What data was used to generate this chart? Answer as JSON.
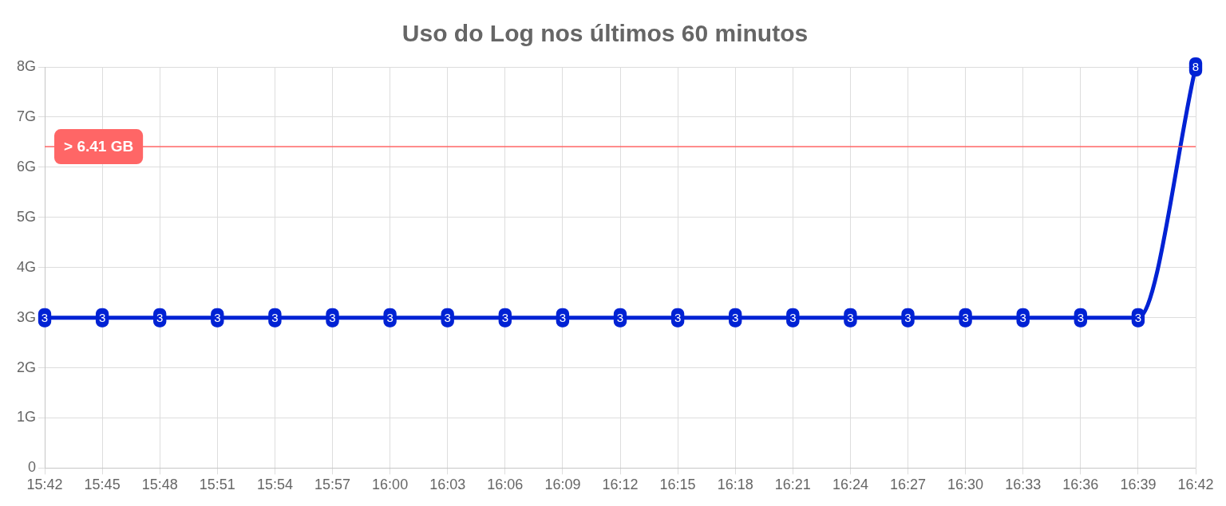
{
  "chart_data": {
    "type": "line",
    "title": "Uso do Log nos últimos 60 minutos",
    "categories": [
      "15:42",
      "15:45",
      "15:48",
      "15:51",
      "15:54",
      "15:57",
      "16:00",
      "16:03",
      "16:06",
      "16:09",
      "16:12",
      "16:15",
      "16:18",
      "16:21",
      "16:24",
      "16:27",
      "16:30",
      "16:33",
      "16:36",
      "16:39",
      "16:42"
    ],
    "series": [
      {
        "color": "#0022d4",
        "values": [
          3,
          3,
          3,
          3,
          3,
          3,
          3,
          3,
          3,
          3,
          3,
          3,
          3,
          3,
          3,
          3,
          3,
          3,
          3,
          3,
          8
        ]
      }
    ],
    "ylim": [
      0,
      8
    ],
    "yticks": [
      0,
      {
        "value": 1,
        "label": "1G"
      },
      {
        "value": 2,
        "label": "2G"
      },
      {
        "value": 3,
        "label": "3G"
      },
      {
        "value": 4,
        "label": "4G"
      },
      {
        "value": 5,
        "label": "5G"
      },
      {
        "value": 6,
        "label": "6G"
      },
      {
        "value": 7,
        "label": "7G"
      },
      {
        "value": 8,
        "label": "8G"
      }
    ],
    "ref_lines": [
      {
        "axis": "y",
        "value": 6.41,
        "label": "> 6.41 GB",
        "color": "#ff6666"
      }
    ],
    "data_labels": true,
    "grid": true,
    "marker": "none",
    "line_style": "solid"
  }
}
